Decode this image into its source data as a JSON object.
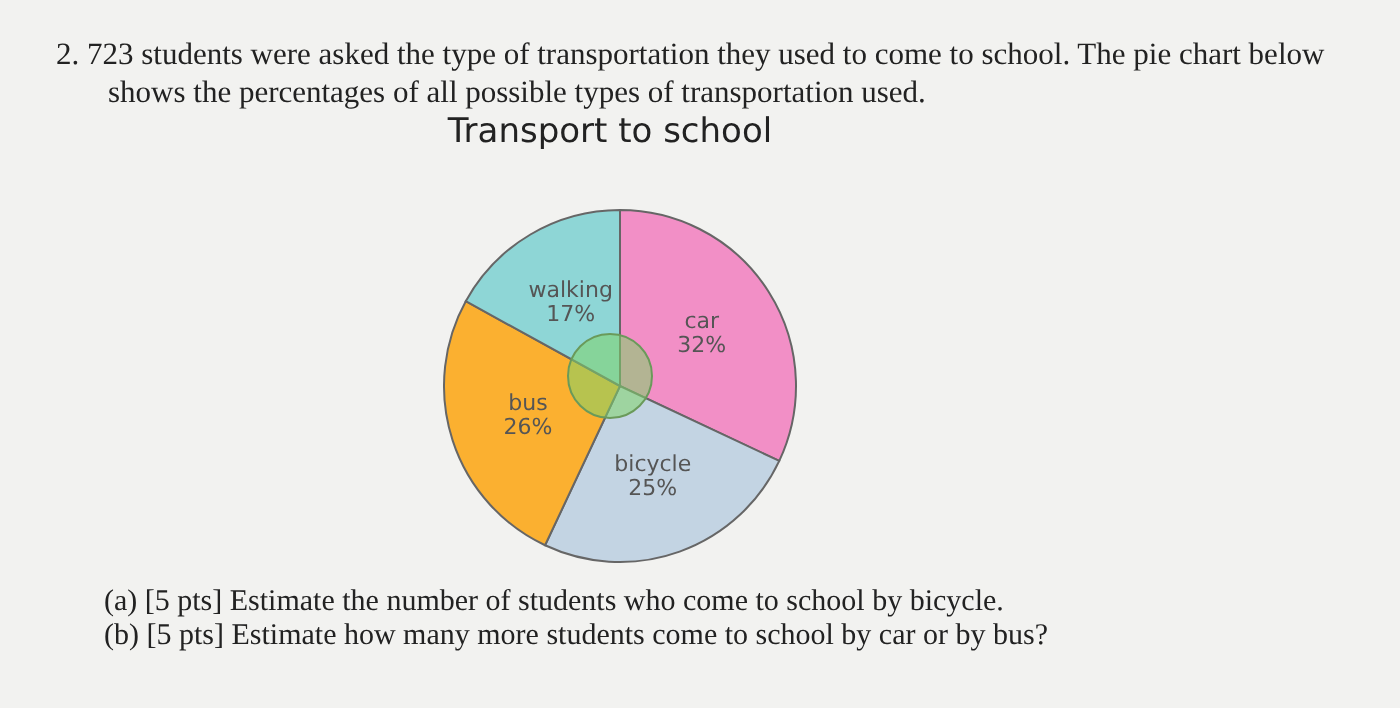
{
  "chart_data": {
    "type": "pie",
    "title": "Transport to school",
    "subtitle": "2.  723 students were asked the type of transportation they used to come to school. The pie chart below shows the percentages of all possible types of transportation used.",
    "categories": [
      "car",
      "bicycle",
      "bus",
      "walking"
    ],
    "values": [
      32,
      25,
      26,
      17
    ],
    "value_labels": [
      "32%",
      "25%",
      "26%",
      "17%"
    ],
    "colors": [
      "#f28fc6",
      "#c3d4e3",
      "#fbb030",
      "#8ed6d6"
    ],
    "annotations": [
      "(a) [5 pts] Estimate the number of students who come to school by bicycle.",
      "(b) [5 pts] Estimate how many more students come to school by car or by bus?"
    ]
  }
}
